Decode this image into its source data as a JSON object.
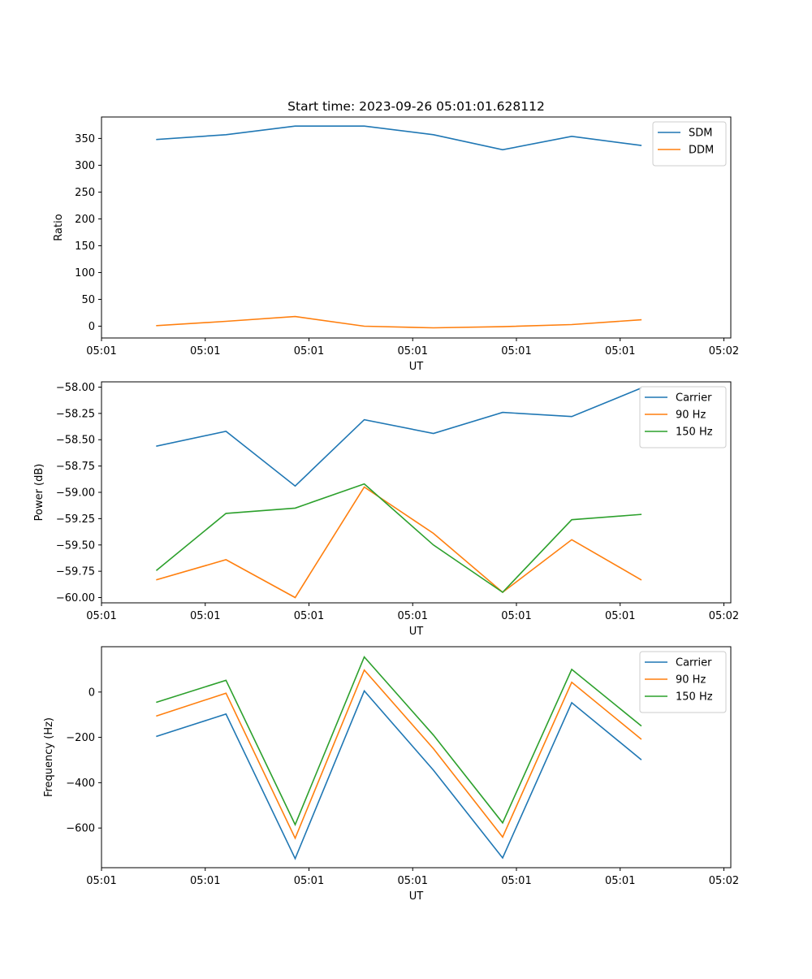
{
  "figure": {
    "title": "Start time: 2023-09-26 05:01:01.628112"
  },
  "chart_data": [
    {
      "type": "line",
      "title": "Start time: 2023-09-26 05:01:01.628112",
      "xlabel": "UT",
      "ylabel": "Ratio",
      "x": [
        1,
        2,
        3,
        4,
        5,
        6,
        7,
        8
      ],
      "xlim": [
        0.2,
        9.3
      ],
      "x_ticks": [
        0.2,
        1.7,
        3.2,
        4.7,
        6.2,
        7.7,
        9.2
      ],
      "x_tick_labels": [
        "05:01",
        "05:01",
        "05:01",
        "05:01",
        "05:01",
        "05:01",
        "05:02"
      ],
      "ylim": [
        -22,
        390
      ],
      "y_ticks": [
        0,
        50,
        100,
        150,
        200,
        250,
        300,
        350
      ],
      "y_tick_labels": [
        "0",
        "50",
        "100",
        "150",
        "200",
        "250",
        "300",
        "350"
      ],
      "legend_position": "top-right",
      "series": [
        {
          "name": "SDM",
          "color": "#1f77b4",
          "values": [
            348,
            357,
            373,
            373,
            357,
            329,
            354,
            337
          ]
        },
        {
          "name": "DDM",
          "color": "#ff7f0e",
          "values": [
            1,
            9,
            18,
            0,
            -3,
            -1,
            3,
            12
          ]
        }
      ]
    },
    {
      "type": "line",
      "title": "",
      "xlabel": "UT",
      "ylabel": "Power (dB)",
      "x": [
        1,
        2,
        3,
        4,
        5,
        6,
        7,
        8
      ],
      "xlim": [
        0.2,
        9.3
      ],
      "x_ticks": [
        0.2,
        1.7,
        3.2,
        4.7,
        6.2,
        7.7,
        9.2
      ],
      "x_tick_labels": [
        "05:01",
        "05:01",
        "05:01",
        "05:01",
        "05:01",
        "05:01",
        "05:02"
      ],
      "ylim": [
        -60.05,
        -57.95
      ],
      "y_ticks": [
        -60.0,
        -59.75,
        -59.5,
        -59.25,
        -59.0,
        -58.75,
        -58.5,
        -58.25,
        -58.0
      ],
      "y_tick_labels": [
        "−60.00",
        "−59.75",
        "−59.50",
        "−59.25",
        "−59.00",
        "−58.75",
        "−58.50",
        "−58.25",
        "−58.00"
      ],
      "legend_position": "top-right",
      "series": [
        {
          "name": "Carrier",
          "color": "#1f77b4",
          "values": [
            -58.56,
            -58.42,
            -58.94,
            -58.31,
            -58.44,
            -58.24,
            -58.28,
            -58.01
          ]
        },
        {
          "name": "90 Hz",
          "color": "#ff7f0e",
          "values": [
            -59.83,
            -59.64,
            -60.0,
            -58.95,
            -59.39,
            -59.95,
            -59.45,
            -59.83
          ]
        },
        {
          "name": "150 Hz",
          "color": "#2ca02c",
          "values": [
            -59.74,
            -59.2,
            -59.15,
            -58.92,
            -59.5,
            -59.95,
            -59.26,
            -59.21
          ]
        }
      ]
    },
    {
      "type": "line",
      "title": "",
      "xlabel": "UT",
      "ylabel": "Frequency (Hz)",
      "x": [
        1,
        2,
        3,
        4,
        5,
        6,
        7,
        8
      ],
      "xlim": [
        0.2,
        9.3
      ],
      "x_ticks": [
        0.2,
        1.7,
        3.2,
        4.7,
        6.2,
        7.7,
        9.2
      ],
      "x_tick_labels": [
        "05:01",
        "05:01",
        "05:01",
        "05:01",
        "05:01",
        "05:01",
        "05:02"
      ],
      "ylim": [
        -775,
        200
      ],
      "y_ticks": [
        -600,
        -400,
        -200,
        0
      ],
      "y_tick_labels": [
        "−600",
        "−400",
        "−200",
        "0"
      ],
      "legend_position": "top-right",
      "series": [
        {
          "name": "Carrier",
          "color": "#1f77b4",
          "values": [
            -195,
            -97,
            -735,
            5,
            -345,
            -732,
            -47,
            -297
          ]
        },
        {
          "name": "90 Hz",
          "color": "#ff7f0e",
          "values": [
            -105,
            -5,
            -645,
            97,
            -250,
            -640,
            43,
            -207
          ]
        },
        {
          "name": "150 Hz",
          "color": "#2ca02c",
          "values": [
            -45,
            52,
            -585,
            155,
            -190,
            -577,
            100,
            -148
          ]
        }
      ]
    }
  ]
}
